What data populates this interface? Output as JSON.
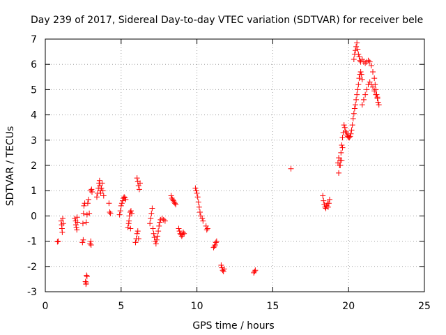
{
  "chart_data": {
    "type": "scatter",
    "title": "Day 239 of 2017, Sidereal Day-to-day VTEC variation (SDTVAR) for receiver bele",
    "xlabel": "GPS time / hours",
    "ylabel": "SDTVAR / TECUs",
    "xlim": [
      0,
      25
    ],
    "ylim": [
      -3,
      7
    ],
    "xticks": [
      0,
      5,
      10,
      15,
      20,
      25
    ],
    "yticks": [
      -3,
      -2,
      -1,
      0,
      1,
      2,
      3,
      4,
      5,
      6,
      7
    ],
    "grid": true,
    "marker": "+",
    "color": "#ff0000",
    "series": [
      {
        "name": "SDTVAR",
        "points": [
          [
            0.8,
            -1.02
          ],
          [
            0.85,
            -1.0
          ],
          [
            1.05,
            -0.2
          ],
          [
            1.08,
            -0.35
          ],
          [
            1.1,
            -0.5
          ],
          [
            1.12,
            -0.65
          ],
          [
            1.15,
            -0.1
          ],
          [
            1.18,
            -0.3
          ],
          [
            1.95,
            -0.1
          ],
          [
            2.0,
            -0.2
          ],
          [
            2.02,
            -0.35
          ],
          [
            2.05,
            -0.45
          ],
          [
            2.08,
            -0.55
          ],
          [
            2.1,
            -0.05
          ],
          [
            2.12,
            -0.25
          ],
          [
            2.45,
            -1.05
          ],
          [
            2.5,
            -0.95
          ],
          [
            2.48,
            -0.3
          ],
          [
            2.52,
            0.1
          ],
          [
            2.55,
            0.4
          ],
          [
            2.6,
            0.5
          ],
          [
            2.65,
            -2.6
          ],
          [
            2.68,
            -2.7
          ],
          [
            2.7,
            -2.65
          ],
          [
            2.72,
            -2.35
          ],
          [
            2.75,
            -2.4
          ],
          [
            2.7,
            -0.25
          ],
          [
            2.75,
            0.05
          ],
          [
            2.8,
            0.5
          ],
          [
            2.85,
            0.65
          ],
          [
            2.9,
            0.1
          ],
          [
            2.95,
            -1.1
          ],
          [
            3.0,
            -1.0
          ],
          [
            3.02,
            -1.15
          ],
          [
            3.0,
            1.0
          ],
          [
            3.05,
            1.05
          ],
          [
            3.08,
            0.95
          ],
          [
            3.4,
            0.75
          ],
          [
            3.45,
            0.9
          ],
          [
            3.5,
            1.1
          ],
          [
            3.55,
            1.3
          ],
          [
            3.58,
            1.4
          ],
          [
            3.6,
            1.2
          ],
          [
            3.62,
            1.0
          ],
          [
            3.65,
            0.9
          ],
          [
            3.7,
            1.1
          ],
          [
            3.75,
            1.3
          ],
          [
            3.8,
            1.0
          ],
          [
            3.85,
            0.8
          ],
          [
            4.2,
            0.5
          ],
          [
            4.25,
            0.15
          ],
          [
            4.3,
            0.1
          ],
          [
            4.9,
            0.05
          ],
          [
            4.95,
            0.2
          ],
          [
            5.0,
            0.4
          ],
          [
            5.05,
            0.5
          ],
          [
            5.1,
            0.6
          ],
          [
            5.15,
            0.7
          ],
          [
            5.2,
            0.75
          ],
          [
            5.25,
            0.72
          ],
          [
            5.3,
            0.65
          ],
          [
            5.45,
            -0.45
          ],
          [
            5.5,
            -0.3
          ],
          [
            5.52,
            -0.2
          ],
          [
            5.55,
            0.0
          ],
          [
            5.6,
            0.15
          ],
          [
            5.65,
            0.2
          ],
          [
            5.7,
            0.1
          ],
          [
            5.62,
            -0.5
          ],
          [
            5.95,
            -1.05
          ],
          [
            6.0,
            -0.9
          ],
          [
            6.05,
            -0.7
          ],
          [
            6.1,
            -0.6
          ],
          [
            6.15,
            -0.9
          ],
          [
            6.05,
            1.5
          ],
          [
            6.1,
            1.35
          ],
          [
            6.15,
            1.2
          ],
          [
            6.2,
            1.05
          ],
          [
            6.25,
            1.3
          ],
          [
            6.9,
            -0.3
          ],
          [
            6.95,
            -0.1
          ],
          [
            7.0,
            0.1
          ],
          [
            7.05,
            0.3
          ],
          [
            7.1,
            -0.5
          ],
          [
            7.15,
            -0.7
          ],
          [
            7.2,
            -0.85
          ],
          [
            7.25,
            -1.0
          ],
          [
            7.3,
            -1.1
          ],
          [
            7.35,
            -0.95
          ],
          [
            7.4,
            -0.8
          ],
          [
            7.45,
            -0.6
          ],
          [
            7.5,
            -0.4
          ],
          [
            7.55,
            -0.25
          ],
          [
            7.6,
            -0.15
          ],
          [
            7.7,
            -0.1
          ],
          [
            7.8,
            -0.15
          ],
          [
            7.9,
            -0.2
          ],
          [
            8.3,
            0.8
          ],
          [
            8.35,
            0.7
          ],
          [
            8.4,
            0.65
          ],
          [
            8.45,
            0.6
          ],
          [
            8.5,
            0.55
          ],
          [
            8.55,
            0.5
          ],
          [
            8.6,
            0.45
          ],
          [
            8.8,
            -0.5
          ],
          [
            8.85,
            -0.6
          ],
          [
            8.9,
            -0.7
          ],
          [
            8.95,
            -0.75
          ],
          [
            9.0,
            -0.8
          ],
          [
            9.05,
            -0.75
          ],
          [
            9.1,
            -0.65
          ],
          [
            9.15,
            -0.7
          ],
          [
            9.9,
            1.1
          ],
          [
            9.95,
            1.0
          ],
          [
            10.0,
            0.9
          ],
          [
            10.05,
            0.75
          ],
          [
            10.1,
            0.55
          ],
          [
            10.15,
            0.35
          ],
          [
            10.2,
            0.15
          ],
          [
            10.25,
            0.0
          ],
          [
            10.35,
            -0.1
          ],
          [
            10.4,
            -0.2
          ],
          [
            10.6,
            -0.4
          ],
          [
            10.65,
            -0.55
          ],
          [
            10.7,
            -0.5
          ],
          [
            11.1,
            -1.25
          ],
          [
            11.15,
            -1.2
          ],
          [
            11.2,
            -1.15
          ],
          [
            11.25,
            -1.05
          ],
          [
            11.3,
            -1.0
          ],
          [
            11.6,
            -1.95
          ],
          [
            11.65,
            -2.05
          ],
          [
            11.7,
            -2.15
          ],
          [
            11.75,
            -2.2
          ],
          [
            11.8,
            -2.1
          ],
          [
            13.75,
            -2.25
          ],
          [
            13.8,
            -2.2
          ],
          [
            13.85,
            -2.15
          ],
          [
            16.2,
            1.87
          ],
          [
            18.3,
            0.8
          ],
          [
            18.35,
            0.6
          ],
          [
            18.4,
            0.45
          ],
          [
            18.45,
            0.35
          ],
          [
            18.5,
            0.3
          ],
          [
            18.55,
            0.4
          ],
          [
            18.6,
            0.5
          ],
          [
            18.65,
            0.35
          ],
          [
            18.7,
            0.5
          ],
          [
            18.75,
            0.65
          ],
          [
            19.35,
            1.7
          ],
          [
            19.4,
            2.0
          ],
          [
            19.45,
            2.2
          ],
          [
            19.5,
            2.5
          ],
          [
            19.55,
            2.8
          ],
          [
            19.6,
            3.1
          ],
          [
            19.65,
            3.3
          ],
          [
            19.7,
            3.6
          ],
          [
            19.75,
            3.5
          ],
          [
            19.8,
            3.35
          ],
          [
            19.85,
            3.3
          ],
          [
            19.9,
            3.2
          ],
          [
            19.95,
            3.15
          ],
          [
            20.0,
            3.1
          ],
          [
            20.05,
            3.1
          ],
          [
            20.1,
            3.15
          ],
          [
            20.15,
            3.25
          ],
          [
            20.2,
            3.4
          ],
          [
            20.25,
            3.6
          ],
          [
            20.3,
            3.85
          ],
          [
            20.35,
            4.05
          ],
          [
            20.4,
            4.25
          ],
          [
            20.45,
            4.4
          ],
          [
            20.5,
            4.6
          ],
          [
            20.55,
            4.8
          ],
          [
            20.6,
            5.0
          ],
          [
            20.65,
            5.2
          ],
          [
            20.7,
            5.45
          ],
          [
            20.75,
            5.6
          ],
          [
            20.8,
            5.7
          ],
          [
            20.85,
            5.6
          ],
          [
            20.9,
            5.4
          ],
          [
            20.35,
            6.2
          ],
          [
            20.4,
            6.4
          ],
          [
            20.45,
            6.55
          ],
          [
            20.5,
            6.7
          ],
          [
            20.55,
            6.85
          ],
          [
            20.6,
            6.6
          ],
          [
            20.65,
            6.4
          ],
          [
            20.7,
            6.3
          ],
          [
            20.75,
            6.15
          ],
          [
            20.8,
            6.1
          ],
          [
            20.9,
            6.2
          ],
          [
            21.0,
            6.1
          ],
          [
            21.1,
            6.05
          ],
          [
            21.2,
            6.1
          ],
          [
            21.3,
            6.15
          ],
          [
            21.4,
            6.1
          ],
          [
            21.5,
            5.95
          ],
          [
            21.6,
            5.7
          ],
          [
            21.7,
            5.45
          ],
          [
            21.75,
            5.2
          ],
          [
            21.8,
            5.0
          ],
          [
            21.85,
            4.8
          ],
          [
            21.9,
            4.65
          ],
          [
            21.95,
            4.5
          ],
          [
            22.0,
            4.4
          ],
          [
            20.9,
            4.4
          ],
          [
            21.0,
            4.6
          ],
          [
            21.1,
            4.8
          ],
          [
            21.2,
            5.0
          ],
          [
            21.3,
            5.2
          ],
          [
            21.4,
            5.3
          ],
          [
            21.5,
            5.2
          ],
          [
            21.6,
            5.1
          ],
          [
            21.7,
            4.95
          ],
          [
            21.8,
            4.8
          ],
          [
            21.9,
            4.7
          ],
          [
            19.3,
            2.1
          ],
          [
            19.35,
            2.3
          ],
          [
            19.45,
            2.0
          ],
          [
            19.55,
            2.2
          ],
          [
            19.6,
            2.7
          ]
        ]
      }
    ]
  }
}
